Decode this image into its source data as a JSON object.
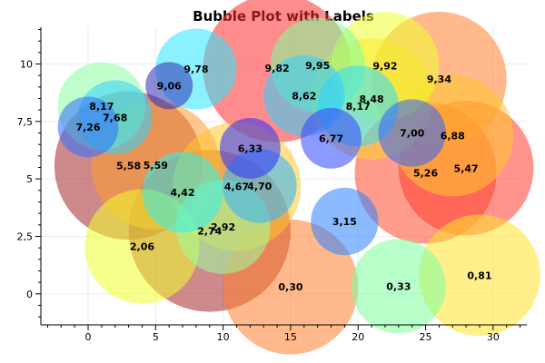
{
  "chart_data": {
    "type": "scatter",
    "title": "Bubble Plot with Labels",
    "xlabel": "",
    "ylabel": "",
    "xlim": [
      -3.5,
      32.5
    ],
    "ylim": [
      -1.35,
      11.6
    ],
    "grid": true,
    "x_ticks": [
      0,
      5,
      10,
      15,
      20,
      25,
      30
    ],
    "x_tick_labels": [
      "0",
      "5",
      "10",
      "15",
      "20",
      "25",
      "30"
    ],
    "y_ticks": [
      0,
      2.5,
      5,
      7.5,
      10
    ],
    "y_tick_labels": [
      "0",
      "2,5",
      "5",
      "7,5",
      "10"
    ],
    "points": [
      {
        "x": 9,
        "y": 2.74,
        "size": 12.0,
        "label": "2,74",
        "color": "#a52a2a"
      },
      {
        "x": 3,
        "y": 5.58,
        "size": 11.0,
        "label": "5,58",
        "color": "#a52a2a"
      },
      {
        "x": 14,
        "y": 9.82,
        "size": 11.0,
        "label": "9,82",
        "color": "#ff2d2d"
      },
      {
        "x": 25,
        "y": 5.26,
        "size": 10.5,
        "label": "5,26",
        "color": "#ff4d2d"
      },
      {
        "x": 28,
        "y": 5.47,
        "size": 10.0,
        "label": "5,47",
        "color": "#ff3d2d"
      },
      {
        "x": 15,
        "y": 0.3,
        "size": 10.0,
        "label": "0,30",
        "color": "#ff7f2d"
      },
      {
        "x": 26,
        "y": 9.34,
        "size": 10.0,
        "label": "9,34",
        "color": "#ff7f2d"
      },
      {
        "x": 5,
        "y": 5.59,
        "size": 9.5,
        "label": "5,59",
        "color": "#ff9a2d"
      },
      {
        "x": 11,
        "y": 4.67,
        "size": 9.5,
        "label": "4,67",
        "color": "#ffc62d"
      },
      {
        "x": 21,
        "y": 8.48,
        "size": 9.0,
        "label": "8,48",
        "color": "#ffd12d"
      },
      {
        "x": 27,
        "y": 6.88,
        "size": 9.0,
        "label": "6,88",
        "color": "#ffc62d"
      },
      {
        "x": 29,
        "y": 0.81,
        "size": 9.0,
        "label": "0,81",
        "color": "#ffe32d"
      },
      {
        "x": 4,
        "y": 2.06,
        "size": 8.5,
        "label": "2,06",
        "color": "#f0ff2d"
      },
      {
        "x": 22,
        "y": 9.92,
        "size": 8.0,
        "label": "9,92",
        "color": "#f0ff2d"
      },
      {
        "x": 10,
        "y": 2.92,
        "size": 7.0,
        "label": "2,92",
        "color": "#9dffa0"
      },
      {
        "x": 17,
        "y": 9.95,
        "size": 7.0,
        "label": "9,95",
        "color": "#7dff9d"
      },
      {
        "x": 23,
        "y": 0.33,
        "size": 7.0,
        "label": "0,33",
        "color": "#7dff9d"
      },
      {
        "x": 1,
        "y": 8.17,
        "size": 6.5,
        "label": "8,17",
        "color": "#8dffa0"
      },
      {
        "x": 20,
        "y": 8.17,
        "size": 6.0,
        "label": "8,17",
        "color": "#2ddcff"
      },
      {
        "x": 7,
        "y": 4.42,
        "size": 6.0,
        "label": "4,42",
        "color": "#2df0f0"
      },
      {
        "x": 8,
        "y": 9.78,
        "size": 6.0,
        "label": "9,78",
        "color": "#2de6ff"
      },
      {
        "x": 16,
        "y": 8.62,
        "size": 6.0,
        "label": "8,62",
        "color": "#2dd2ff"
      },
      {
        "x": 2,
        "y": 7.68,
        "size": 5.5,
        "label": "7,68",
        "color": "#2dd2ff"
      },
      {
        "x": 12.7,
        "y": 4.7,
        "size": 5.5,
        "label": "4,70",
        "color": "#2db4ff"
      },
      {
        "x": 19,
        "y": 3.15,
        "size": 5.0,
        "label": "3,15",
        "color": "#2d82ff"
      },
      {
        "x": 24,
        "y": 7.0,
        "size": 5.0,
        "label": "7,00",
        "color": "#2d64ff"
      },
      {
        "x": 0,
        "y": 7.26,
        "size": 4.5,
        "label": "7,26",
        "color": "#2d6eff"
      },
      {
        "x": 18,
        "y": 6.77,
        "size": 4.5,
        "label": "6,77",
        "color": "#2d46ff"
      },
      {
        "x": 12,
        "y": 6.33,
        "size": 4.5,
        "label": "6,33",
        "color": "#2d2dff"
      },
      {
        "x": 6,
        "y": 9.06,
        "size": 3.5,
        "label": "9,06",
        "color": "#2d2db4"
      }
    ]
  }
}
